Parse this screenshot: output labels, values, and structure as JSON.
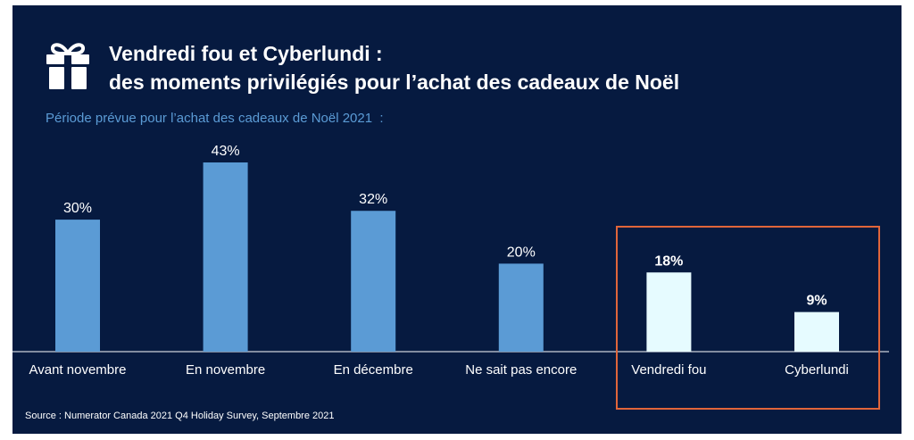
{
  "header": {
    "title_line1": "Vendredi fou et Cyberlundi :",
    "title_line2": "des moments privilégiés pour l’achat des cadeaux de Noël",
    "icon": "gift-icon"
  },
  "chart_data": {
    "type": "bar",
    "title": "Vendredi fou et Cyberlundi : des moments privilégiés pour l’achat des cadeaux de Noël",
    "subtitle": "Période prévue pour l’achat des cadeaux de Noël 2021  :",
    "categories": [
      "Avant novembre",
      "En novembre",
      "En décembre",
      "Ne sait pas encore",
      "Vendredi fou",
      "Cyberlundi"
    ],
    "values": [
      30,
      43,
      32,
      20,
      18,
      9
    ],
    "value_labels": [
      "30%",
      "43%",
      "32%",
      "20%",
      "18%",
      "9%"
    ],
    "unit": "%",
    "highlighted": [
      "Vendredi fou",
      "Cyberlundi"
    ],
    "ylim": [
      0,
      50
    ],
    "grid": false,
    "legend": "none",
    "colors": {
      "bar": "#5b9bd5",
      "highlight_bar": "#e6fbff",
      "background": "#061a40",
      "highlight_box": "#e0653a"
    }
  },
  "footer": {
    "source": "Source : Numerator Canada 2021 Q4 Holiday Survey, Septembre 2021"
  }
}
